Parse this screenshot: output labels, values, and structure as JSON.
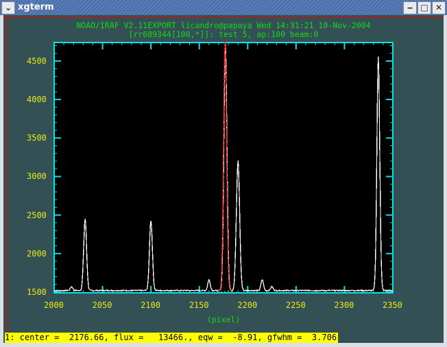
{
  "window": {
    "title": "xgterm",
    "menu_icon": "chevron-down-icon",
    "buttons": [
      "minimize-icon",
      "maximize-icon",
      "close-icon"
    ]
  },
  "header": {
    "line1": "NOAO/IRAF V2.11EXPORT licandro@papaya Wed 14:31:21 10-Nov-2004",
    "line2": "[rr689344[100,*]]: test 5, ap:100 beam:0"
  },
  "status": "1: center =  2176.66, flux =   13466., eqw =  -8.91, gfwhm =  3.706",
  "colors": {
    "frame": "#00e5e5",
    "spectrum": "#ffffff",
    "fit": "#ff2020",
    "continuum": "#19d619",
    "labels": "#e8e81a",
    "status_bg": "#ffff00",
    "crosshair": "#ff0000"
  },
  "chart_data": {
    "type": "line",
    "xlabel": "(pixel)",
    "ylabel": "",
    "xlim": [
      2000,
      2350
    ],
    "ylim": [
      1490,
      4740
    ],
    "xticks": [
      "2000",
      "2050",
      "2100",
      "2150",
      "2200",
      "2250",
      "2300",
      "2350"
    ],
    "yticks": [
      "1500",
      "2000",
      "2500",
      "3000",
      "3500",
      "4000",
      "4500"
    ],
    "baseline": 1520,
    "peaks": [
      {
        "x": 2018,
        "height": 1570,
        "fwhm": 3
      },
      {
        "x": 2032,
        "height": 2450,
        "fwhm": 3.5
      },
      {
        "x": 2100,
        "height": 2430,
        "fwhm": 3.5
      },
      {
        "x": 2160,
        "height": 1660,
        "fwhm": 3
      },
      {
        "x": 2177,
        "height": 4740,
        "fwhm": 3.7
      },
      {
        "x": 2190,
        "height": 3200,
        "fwhm": 4
      },
      {
        "x": 2215,
        "height": 1660,
        "fwhm": 3
      },
      {
        "x": 2225,
        "height": 1570,
        "fwhm": 3
      },
      {
        "x": 2335,
        "height": 4560,
        "fwhm": 3.5
      }
    ],
    "fit": {
      "center": 2176.66,
      "flux": 13466,
      "eqw": -8.91,
      "gfwhm": 3.706
    }
  }
}
